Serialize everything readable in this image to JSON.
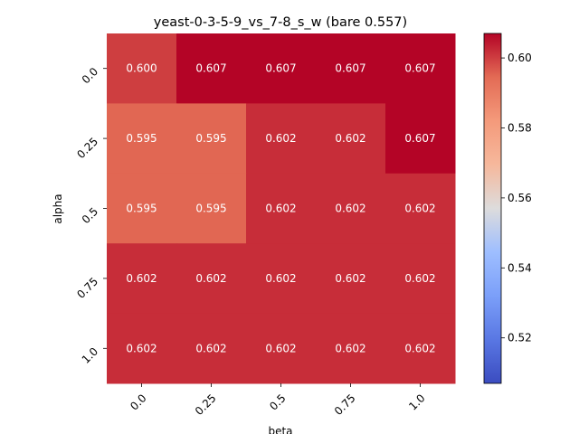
{
  "chart_data": {
    "type": "heatmap",
    "title": "yeast-0-3-5-9_vs_7-8_s_w (bare 0.557)",
    "xlabel": "beta",
    "ylabel": "alpha",
    "x_categories": [
      "0.0",
      "0.25",
      "0.5",
      "0.75",
      "1.0"
    ],
    "y_categories": [
      "0.0",
      "0.25",
      "0.5",
      "0.75",
      "1.0"
    ],
    "values": [
      [
        0.6,
        0.607,
        0.607,
        0.607,
        0.607
      ],
      [
        0.595,
        0.595,
        0.602,
        0.602,
        0.607
      ],
      [
        0.595,
        0.595,
        0.602,
        0.602,
        0.602
      ],
      [
        0.602,
        0.602,
        0.602,
        0.602,
        0.602
      ],
      [
        0.602,
        0.602,
        0.602,
        0.602,
        0.602
      ]
    ],
    "cell_labels": [
      [
        "0.600",
        "0.607",
        "0.607",
        "0.607",
        "0.607"
      ],
      [
        "0.595",
        "0.595",
        "0.602",
        "0.602",
        "0.607"
      ],
      [
        "0.595",
        "0.595",
        "0.602",
        "0.602",
        "0.602"
      ],
      [
        "0.602",
        "0.602",
        "0.602",
        "0.602",
        "0.602"
      ],
      [
        "0.602",
        "0.602",
        "0.602",
        "0.602",
        "0.602"
      ]
    ],
    "colormap": "coolwarm",
    "colorbar": {
      "range": [
        0.507,
        0.607
      ],
      "ticks": [
        "0.52",
        "0.54",
        "0.56",
        "0.58",
        "0.60"
      ],
      "tick_values": [
        0.52,
        0.54,
        0.56,
        0.58,
        0.6
      ]
    },
    "grid": false
  }
}
